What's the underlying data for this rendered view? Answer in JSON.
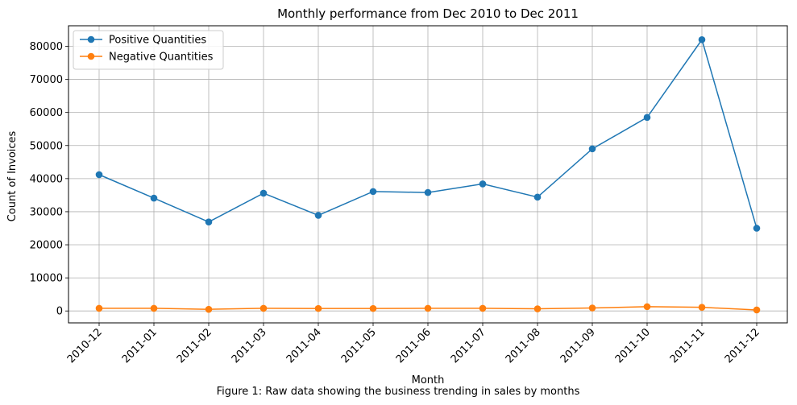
{
  "chart_data": {
    "type": "line",
    "title": "Monthly performance from Dec 2010 to Dec 2011",
    "xlabel": "Month",
    "ylabel": "Count of Invoices",
    "caption": "Figure 1: Raw data showing the business trending in sales by months",
    "categories": [
      "2010-12",
      "2011-01",
      "2011-02",
      "2011-03",
      "2011-04",
      "2011-05",
      "2011-06",
      "2011-07",
      "2011-08",
      "2011-09",
      "2011-10",
      "2011-11",
      "2011-12"
    ],
    "yticks": [
      0,
      10000,
      20000,
      30000,
      40000,
      50000,
      60000,
      70000,
      80000
    ],
    "ylim": [
      -3600,
      86200
    ],
    "grid": true,
    "legend_position": "top-left",
    "series": [
      {
        "name": "Positive Quantities",
        "color": "#1f77b4",
        "values": [
          41200,
          34100,
          26900,
          35600,
          28900,
          36100,
          35800,
          38400,
          34400,
          49000,
          58500,
          82000,
          25000
        ]
      },
      {
        "name": "Negative Quantities",
        "color": "#ff7f0e",
        "values": [
          800,
          800,
          500,
          800,
          750,
          750,
          800,
          800,
          650,
          900,
          1300,
          1100,
          300
        ]
      }
    ]
  }
}
